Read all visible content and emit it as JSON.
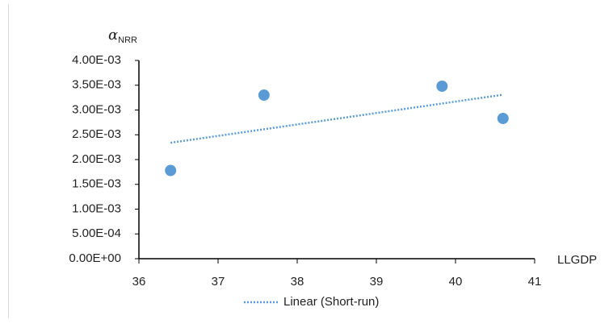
{
  "chart_data": {
    "type": "scatter",
    "y_label": {
      "symbol": "α",
      "subscript": "NRR"
    },
    "x_label": "LLGDP",
    "x": [
      36.4,
      37.58,
      39.83,
      40.6
    ],
    "values": [
      0.00178,
      0.0033,
      0.00348,
      0.00283
    ],
    "color": "#5b9bd5",
    "trendline": {
      "type": "linear",
      "name": "Linear (Short-run)",
      "color": "#5b9bd5"
    },
    "xlim": [
      36,
      41
    ],
    "xticks": [
      36,
      37,
      38,
      39,
      40,
      41
    ],
    "ylim": [
      0,
      0.004
    ],
    "yticks": [
      {
        "value": 0,
        "label": "0.00E+00"
      },
      {
        "value": 0.0005,
        "label": "5.00E-04"
      },
      {
        "value": 0.001,
        "label": "1.00E-03"
      },
      {
        "value": 0.0015,
        "label": "1.50E-03"
      },
      {
        "value": 0.002,
        "label": "2.00E-03"
      },
      {
        "value": 0.0025,
        "label": "2.50E-03"
      },
      {
        "value": 0.003,
        "label": "3.00E-03"
      },
      {
        "value": 0.0035,
        "label": "3.50E-03"
      },
      {
        "value": 0.004,
        "label": "4.00E-03"
      }
    ],
    "grid": false,
    "legend": "bottom"
  }
}
